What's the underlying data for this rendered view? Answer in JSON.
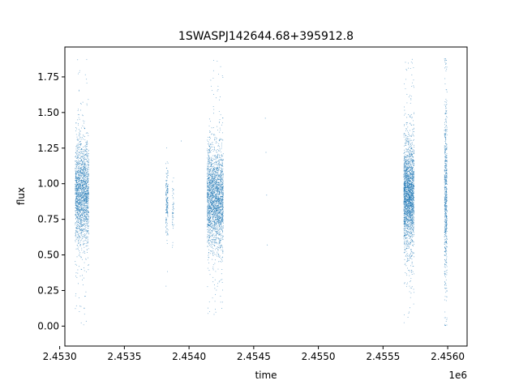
{
  "chart_data": {
    "type": "scatter",
    "title": "1SWASPJ142644.68+395912.8",
    "xlabel": "time",
    "ylabel": "flux",
    "x_offset_label": "1e6",
    "xlim": [
      2453040,
      2456150
    ],
    "ylim": [
      -0.14,
      1.96
    ],
    "x_ticks": [
      2453000,
      2453500,
      2454000,
      2454500,
      2455000,
      2455500,
      2456000
    ],
    "x_tick_labels": [
      "2.4530",
      "2.4535",
      "2.4540",
      "2.4545",
      "2.4550",
      "2.4555",
      "2.4560"
    ],
    "y_ticks": [
      0.0,
      0.25,
      0.5,
      0.75,
      1.0,
      1.25,
      1.5,
      1.75
    ],
    "y_tick_labels": [
      "0.00",
      "0.25",
      "0.50",
      "0.75",
      "1.00",
      "1.25",
      "1.50",
      "1.75"
    ],
    "grid": false,
    "marker_color": "#1f77b4",
    "observing_seasons": [
      {
        "x_start": 2453120,
        "x_end": 2453225,
        "center": 0.93,
        "spread": 0.17,
        "y_min": -0.04,
        "y_max": 1.88,
        "count": 1900
      },
      {
        "x_start": 2453820,
        "x_end": 2453838,
        "center": 0.88,
        "spread": 0.1,
        "y_min": 0.28,
        "y_max": 1.27,
        "count": 180
      },
      {
        "x_start": 2453870,
        "x_end": 2453882,
        "center": 0.85,
        "spread": 0.08,
        "y_min": 0.55,
        "y_max": 1.05,
        "count": 50
      },
      {
        "x_start": 2454140,
        "x_end": 2454265,
        "center": 0.9,
        "spread": 0.16,
        "y_min": 0.08,
        "y_max": 1.88,
        "count": 2300
      },
      {
        "x_start": 2455660,
        "x_end": 2455740,
        "center": 0.92,
        "spread": 0.17,
        "y_min": 0.02,
        "y_max": 1.88,
        "count": 2300
      },
      {
        "x_start": 2455975,
        "x_end": 2455995,
        "center": 0.92,
        "spread": 0.28,
        "y_min": 0.0,
        "y_max": 1.88,
        "count": 650
      }
    ],
    "isolated_points": [
      [
        2453940,
        1.3
      ],
      [
        2454590,
        1.46
      ],
      [
        2454595,
        1.22
      ],
      [
        2454600,
        0.92
      ],
      [
        2454605,
        0.57
      ]
    ]
  }
}
